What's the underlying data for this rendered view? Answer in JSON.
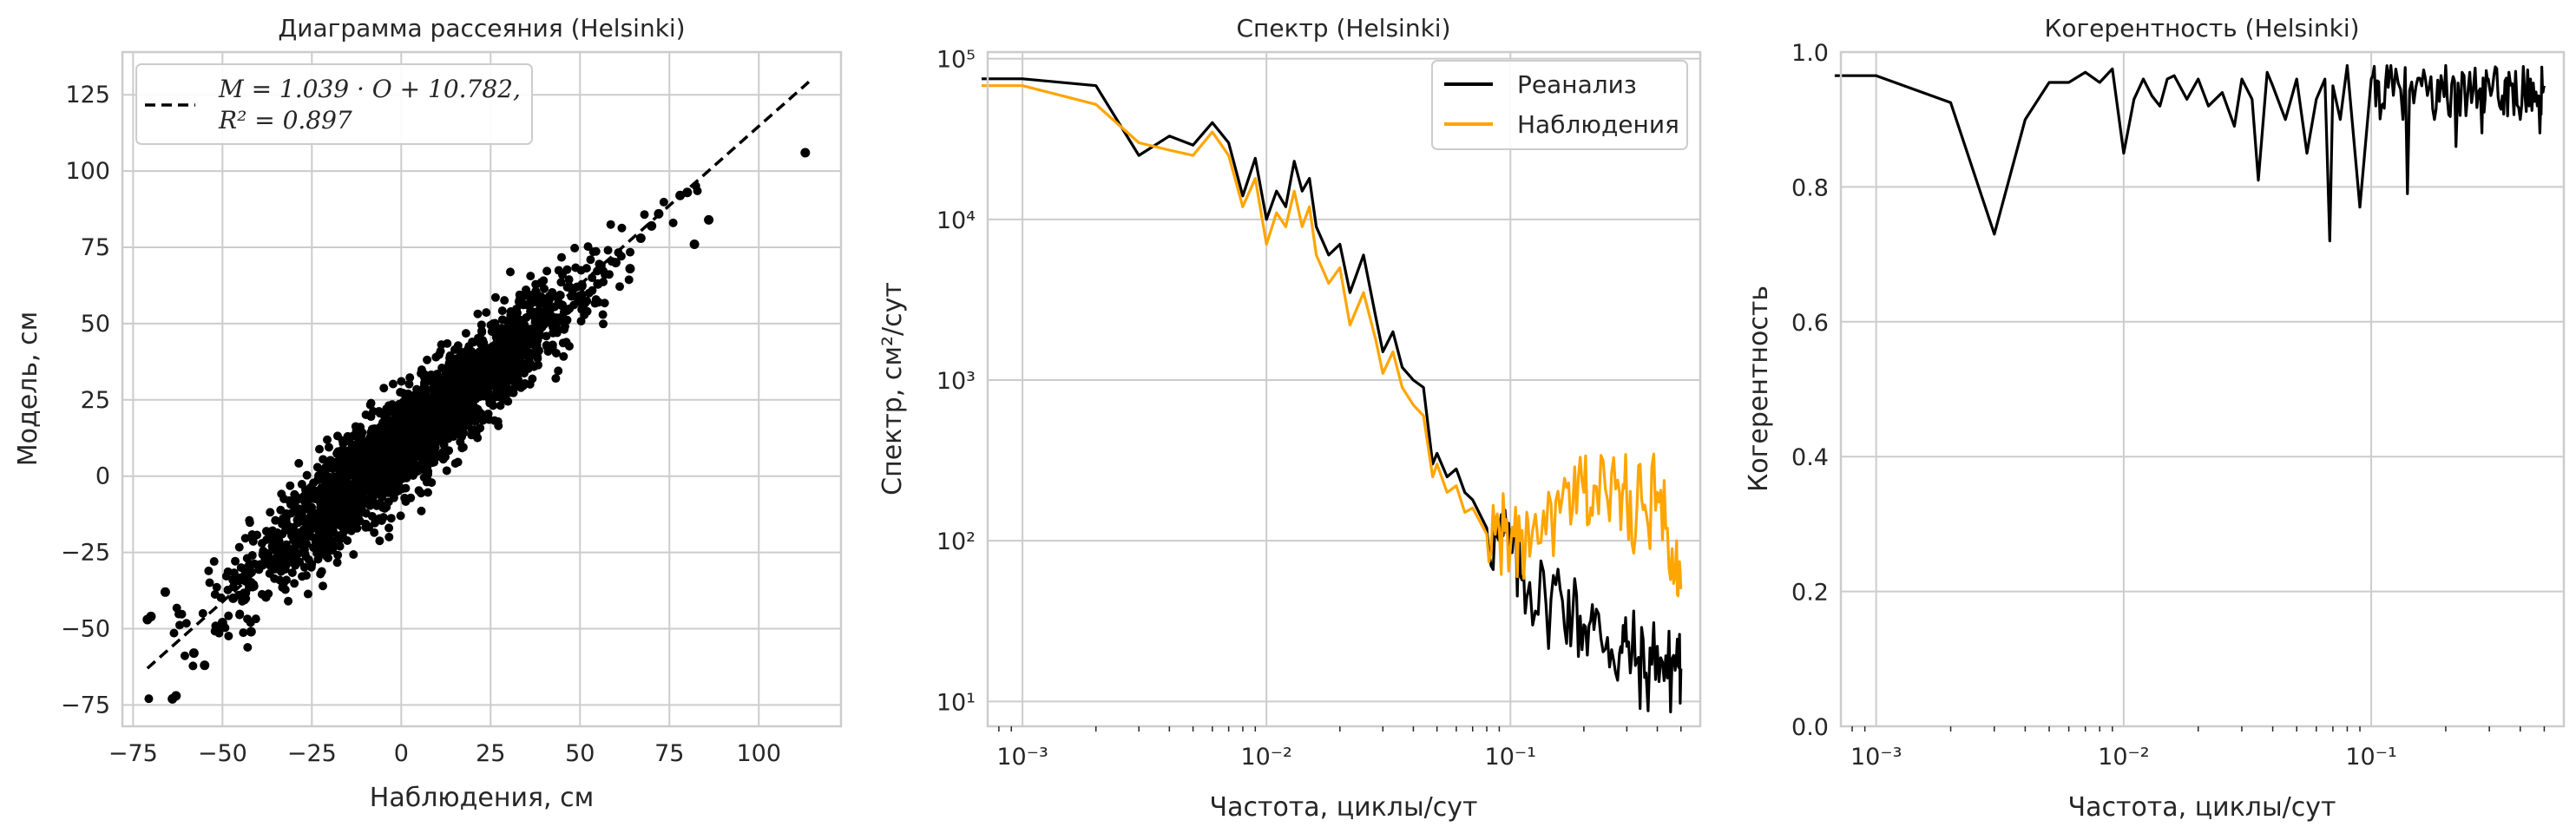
{
  "chart_data": [
    {
      "type": "scatter",
      "title": "Диаграмма рассеяния (Helsinki)",
      "xlabel": "Наблюдения, см",
      "ylabel": "Модель, см",
      "xlim": [
        -78,
        123
      ],
      "ylim": [
        -82,
        139
      ],
      "xticks": [
        -75,
        -50,
        -25,
        0,
        25,
        50,
        75,
        100
      ],
      "yticks": [
        -75,
        -50,
        -25,
        0,
        25,
        50,
        75,
        100,
        125
      ],
      "grid": true,
      "legend_position": "top-left",
      "fit": {
        "label_line1": "M = 1.039 · O + 10.782,",
        "label_line2": "R² = 0.897",
        "slope": 1.039,
        "intercept": 10.782,
        "x_range": [
          -71,
          114
        ],
        "style": "dashed",
        "color": "#000000"
      },
      "point_color": "#000000",
      "sample_points": [
        [
          -71,
          -47
        ],
        [
          -70,
          -46
        ],
        [
          -66,
          -38
        ],
        [
          -64,
          -73
        ],
        [
          -63,
          -72
        ],
        [
          -58,
          -58
        ],
        [
          -55,
          -62
        ],
        [
          -50,
          -48
        ],
        [
          -47,
          -40
        ],
        [
          -42,
          -51
        ],
        [
          -38,
          -27
        ],
        [
          -33,
          -35
        ],
        [
          -30,
          -19
        ],
        [
          -25,
          -12
        ],
        [
          -20,
          -18
        ],
        [
          -15,
          -3
        ],
        [
          -10,
          4
        ],
        [
          -6,
          -9
        ],
        [
          0,
          11
        ],
        [
          4,
          20
        ],
        [
          8,
          14
        ],
        [
          13,
          25
        ],
        [
          18,
          31
        ],
        [
          22,
          27
        ],
        [
          27,
          38
        ],
        [
          32,
          41
        ],
        [
          36,
          48
        ],
        [
          41,
          52
        ],
        [
          45,
          56
        ],
        [
          50,
          59
        ],
        [
          55,
          63
        ],
        [
          60,
          70
        ],
        [
          64,
          68
        ],
        [
          67,
          78
        ],
        [
          70,
          82
        ],
        [
          72,
          86
        ],
        [
          78,
          92
        ],
        [
          80,
          93
        ],
        [
          82,
          76
        ],
        [
          86,
          84
        ],
        [
          113,
          106
        ]
      ]
    },
    {
      "type": "line",
      "title": "Спектр (Helsinki)",
      "xlabel": "Частота, циклы/сут",
      "ylabel": "Спектр, см²/сут",
      "xscale": "log",
      "yscale": "log",
      "xlim": [
        0.00072,
        0.6
      ],
      "ylim": [
        7,
        110000
      ],
      "xticks": [
        "10⁻³",
        "10⁻²",
        "10⁻¹"
      ],
      "yticks": [
        "10¹",
        "10²",
        "10³",
        "10⁴",
        "10⁵"
      ],
      "grid": true,
      "legend_position": "top-right",
      "series": [
        {
          "name": "Реанализ",
          "color": "#000000",
          "x": [
            0.00068,
            0.001,
            0.002,
            0.003,
            0.004,
            0.005,
            0.006,
            0.007,
            0.008,
            0.009,
            0.01,
            0.011,
            0.012,
            0.013,
            0.014,
            0.015,
            0.016,
            0.018,
            0.02,
            0.022,
            0.025,
            0.028,
            0.03,
            0.033,
            0.036,
            0.04,
            0.044,
            0.048,
            0.05,
            0.055,
            0.06,
            0.065,
            0.07,
            0.08,
            0.09,
            0.1,
            0.11,
            0.12,
            0.14,
            0.16,
            0.18,
            0.2,
            0.22,
            0.25,
            0.28,
            0.3,
            0.33,
            0.36,
            0.4,
            0.44,
            0.48,
            0.5
          ],
          "y": [
            75000,
            75000,
            68000,
            25000,
            33000,
            29000,
            40000,
            30000,
            14000,
            24000,
            10000,
            15000,
            12000,
            23000,
            15000,
            18000,
            9000,
            6000,
            7000,
            3500,
            6000,
            2500,
            1500,
            2000,
            1200,
            1000,
            900,
            300,
            350,
            250,
            280,
            200,
            180,
            120,
            100,
            90,
            60,
            55,
            40,
            50,
            35,
            30,
            28,
            25,
            20,
            22,
            18,
            15,
            22,
            14,
            20,
            16
          ]
        },
        {
          "name": "Наблюдения",
          "color": "#FFA500",
          "x": [
            0.00068,
            0.001,
            0.002,
            0.003,
            0.004,
            0.005,
            0.006,
            0.007,
            0.008,
            0.009,
            0.01,
            0.011,
            0.012,
            0.013,
            0.014,
            0.015,
            0.016,
            0.018,
            0.02,
            0.022,
            0.025,
            0.028,
            0.03,
            0.033,
            0.036,
            0.04,
            0.044,
            0.048,
            0.05,
            0.055,
            0.06,
            0.065,
            0.07,
            0.08,
            0.09,
            0.1,
            0.11,
            0.12,
            0.14,
            0.16,
            0.18,
            0.2,
            0.22,
            0.25,
            0.28,
            0.3,
            0.33,
            0.36,
            0.4,
            0.44,
            0.48,
            0.5
          ],
          "y": [
            68000,
            68000,
            52000,
            30000,
            27000,
            25000,
            35000,
            25000,
            12000,
            18000,
            7000,
            11000,
            9000,
            15000,
            9000,
            12000,
            6000,
            4000,
            5000,
            2200,
            3500,
            1800,
            1100,
            1500,
            900,
            700,
            600,
            250,
            300,
            200,
            220,
            150,
            160,
            110,
            120,
            90,
            100,
            80,
            110,
            150,
            160,
            200,
            220,
            180,
            200,
            180,
            160,
            150,
            200,
            120,
            100,
            50
          ]
        }
      ]
    },
    {
      "type": "line",
      "title": "Когерентность (Helsinki)",
      "xlabel": "Частота, циклы/сут",
      "ylabel": "Когерентность",
      "xscale": "log",
      "xlim": [
        0.00072,
        0.6
      ],
      "ylim": [
        0,
        1.0
      ],
      "xticks": [
        "10⁻³",
        "10⁻²",
        "10⁻¹"
      ],
      "yticks": [
        "0.0",
        "0.2",
        "0.4",
        "0.6",
        "0.8",
        "1.0"
      ],
      "grid": true,
      "series": [
        {
          "color": "#000000",
          "x": [
            0.00068,
            0.001,
            0.002,
            0.003,
            0.004,
            0.005,
            0.006,
            0.007,
            0.008,
            0.009,
            0.01,
            0.011,
            0.012,
            0.013,
            0.014,
            0.015,
            0.016,
            0.018,
            0.02,
            0.022,
            0.025,
            0.028,
            0.03,
            0.033,
            0.035,
            0.038,
            0.04,
            0.045,
            0.05,
            0.055,
            0.06,
            0.065,
            0.068,
            0.07,
            0.075,
            0.08,
            0.09,
            0.1,
            0.11,
            0.12,
            0.14,
            0.16,
            0.18,
            0.2,
            0.22,
            0.25,
            0.28,
            0.3,
            0.33,
            0.36,
            0.4,
            0.44,
            0.48,
            0.5
          ],
          "y": [
            0.965,
            0.965,
            0.925,
            0.73,
            0.9,
            0.955,
            0.955,
            0.97,
            0.955,
            0.975,
            0.85,
            0.93,
            0.96,
            0.935,
            0.92,
            0.96,
            0.965,
            0.93,
            0.96,
            0.92,
            0.94,
            0.89,
            0.96,
            0.93,
            0.81,
            0.97,
            0.95,
            0.9,
            0.96,
            0.85,
            0.93,
            0.96,
            0.72,
            0.95,
            0.9,
            0.98,
            0.77,
            0.96,
            0.92,
            0.98,
            0.79,
            0.95,
            0.9,
            0.98,
            0.86,
            0.97,
            0.88,
            0.95,
            0.92,
            0.97,
            0.9,
            0.96,
            0.88,
            0.95
          ]
        }
      ]
    }
  ]
}
